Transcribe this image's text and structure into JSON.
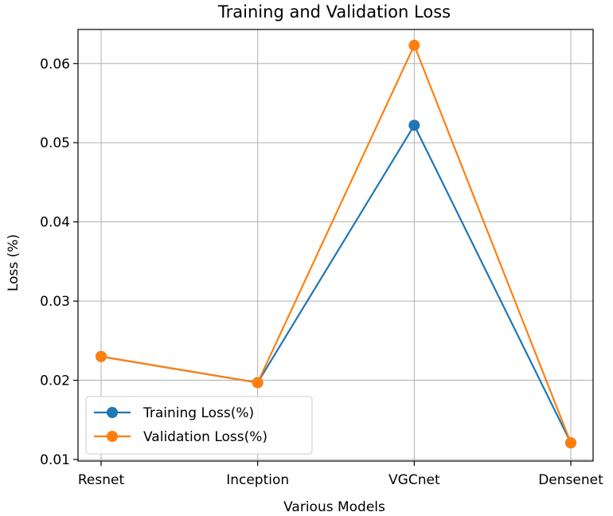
{
  "chart_data": {
    "type": "line",
    "title": "Training and Validation Loss",
    "xlabel": "Various Models",
    "ylabel": "Loss (%)",
    "categories": [
      "Resnet",
      "Inception",
      "VGCnet",
      "Densenet"
    ],
    "ylim": [
      0.0098,
      0.0643
    ],
    "yticks": [
      0.01,
      0.02,
      0.03,
      0.04,
      0.05,
      0.06
    ],
    "ytick_labels": [
      "0.01",
      "0.02",
      "0.03",
      "0.04",
      "0.05",
      "0.06"
    ],
    "grid": true,
    "legend_position": "lower-left",
    "series": [
      {
        "name": "Training Loss(%)",
        "color": "#1f77b4",
        "marker": "circle",
        "values": [
          0.023,
          0.0197,
          0.0522,
          0.0121
        ]
      },
      {
        "name": "Validation Loss(%)",
        "color": "#ff7f0e",
        "marker": "circle",
        "values": [
          0.023,
          0.0197,
          0.0623,
          0.0121
        ]
      }
    ]
  }
}
